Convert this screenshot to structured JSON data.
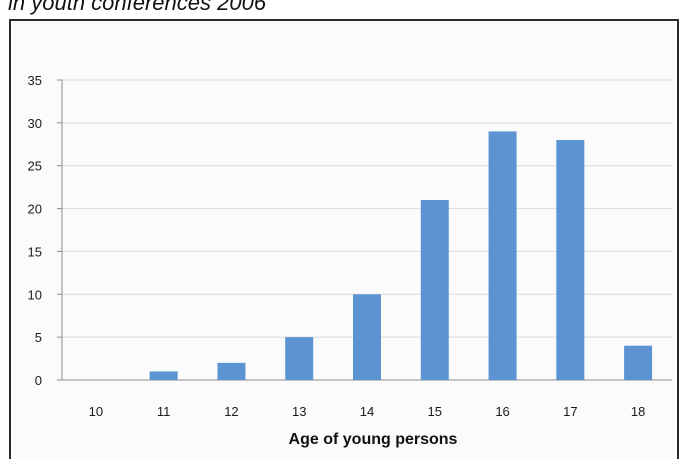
{
  "caption": "in youth conferences 2006",
  "chart_data": {
    "type": "bar",
    "categories": [
      "10",
      "11",
      "12",
      "13",
      "14",
      "15",
      "16",
      "17",
      "18"
    ],
    "values": [
      0,
      1,
      2,
      5,
      10,
      21,
      29,
      28,
      4
    ],
    "xlabel": "Age of young persons",
    "ylabel": "",
    "ylim": [
      0,
      35
    ],
    "yticks": [
      "0",
      "5",
      "10",
      "15",
      "20",
      "25",
      "30",
      "35"
    ],
    "grid": true,
    "bar_color": "#5b93d3",
    "grid_color": "#d9d9d9",
    "axis_color": "#8c8c8c"
  }
}
